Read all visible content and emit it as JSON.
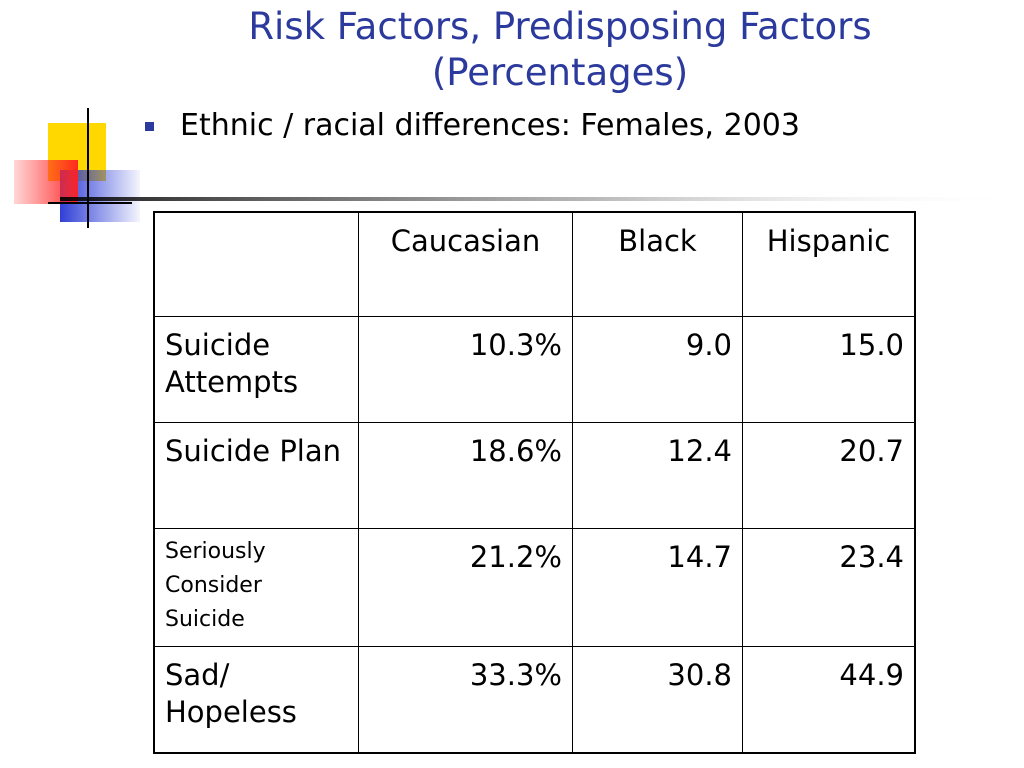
{
  "slide": {
    "title_line1": "Risk Factors, Predisposing Factors",
    "title_line2": "(Percentages)",
    "bullet": "Ethnic / racial differences: Females, 2003"
  },
  "colors": {
    "title": "#2b3a9c",
    "bullet": "#2b3a9c",
    "deco_yellow": "#ffd800",
    "deco_blue": "#2f3fd6",
    "deco_red": "#ff4040"
  },
  "table": {
    "headers": [
      "",
      "Caucasian",
      "Black",
      "Hispanic"
    ],
    "rows": [
      {
        "label": "Suicide Attempts",
        "values": [
          "10.3%",
          "9.0",
          "15.0"
        ]
      },
      {
        "label": "Suicide Plan",
        "values": [
          "18.6%",
          "12.4",
          "20.7"
        ]
      },
      {
        "label": "Seriously Consider Suicide",
        "values": [
          "21.2%",
          "14.7",
          "23.4"
        ]
      },
      {
        "label": "Sad/ Hopeless",
        "values": [
          "33.3%",
          "30.8",
          "44.9"
        ]
      }
    ]
  }
}
